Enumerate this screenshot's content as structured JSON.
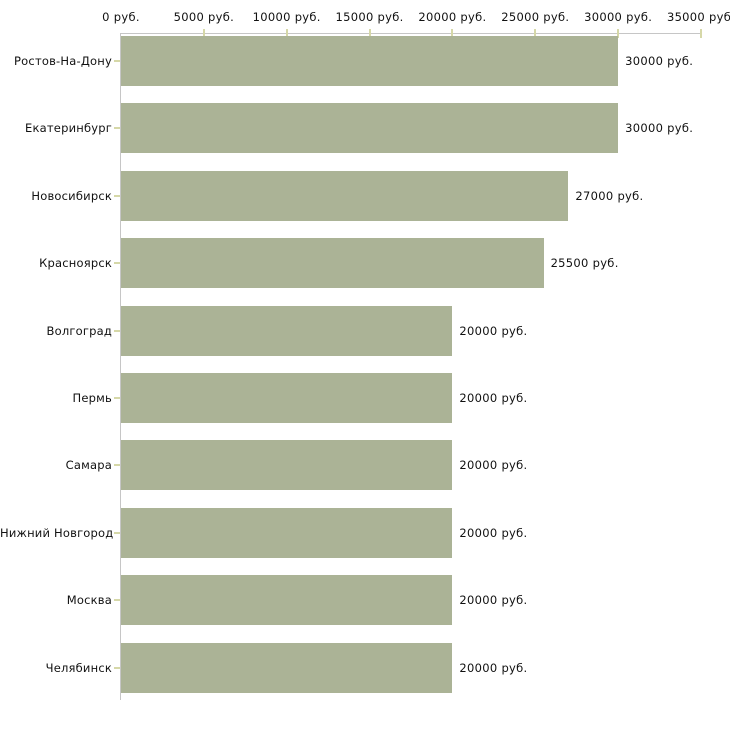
{
  "chart_data": {
    "type": "bar",
    "orientation": "horizontal",
    "title": "",
    "unit": "руб.",
    "categories": [
      "Ростов-На-Дону",
      "Екатеринбург",
      "Новосибирск",
      "Красноярск",
      "Волгоград",
      "Пермь",
      "Самара",
      "Нижний Новгород",
      "Москва",
      "Челябинск"
    ],
    "values": [
      30000,
      30000,
      27000,
      25500,
      20000,
      20000,
      20000,
      20000,
      20000,
      20000
    ],
    "value_labels": [
      "30000 руб.",
      "30000 руб.",
      "27000 руб.",
      "25500 руб.",
      "20000 руб.",
      "20000 руб.",
      "20000 руб.",
      "20000 руб.",
      "20000 руб.",
      "20000 руб."
    ],
    "x_ticks": [
      {
        "value": 0,
        "label": "0 руб."
      },
      {
        "value": 5000,
        "label": "5000 руб."
      },
      {
        "value": 10000,
        "label": "10000 руб."
      },
      {
        "value": 15000,
        "label": "15000 руб."
      },
      {
        "value": 20000,
        "label": "20000 руб."
      },
      {
        "value": 25000,
        "label": "25000 руб."
      },
      {
        "value": 30000,
        "label": "30000 руб."
      },
      {
        "value": 35000,
        "label": "35000 руб."
      }
    ],
    "xlim": [
      0,
      35000
    ],
    "grid": false,
    "legend": false,
    "colors": {
      "bar": "#abb396",
      "axis": "#c6c6c6",
      "tick": "#d6d8a8",
      "text": "#111111",
      "background": "#ffffff"
    }
  }
}
